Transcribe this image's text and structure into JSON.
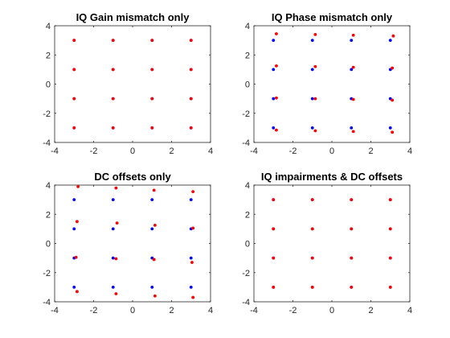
{
  "colors": {
    "ideal": "#0000ff",
    "impaired": "#ff0000",
    "axes": "#262626",
    "background": "#ffffff"
  },
  "chart_data": [
    {
      "type": "scatter",
      "title": "IQ Gain mismatch only",
      "xlim": [
        -4,
        4
      ],
      "ylim": [
        -4,
        4
      ],
      "xticks": [
        -4,
        -2,
        0,
        2,
        4
      ],
      "yticks": [
        -4,
        -2,
        0,
        2,
        4
      ],
      "xtick_labels": [
        "-4",
        "-2",
        "0",
        "2",
        "4"
      ],
      "ytick_labels": [
        "-4",
        "-2",
        "0",
        "2",
        "4"
      ],
      "grid": false,
      "series": [
        {
          "color": "#0000ff",
          "points": [
            [
              -3,
              3
            ],
            [
              -1,
              3
            ],
            [
              1,
              3
            ],
            [
              3,
              3
            ],
            [
              -3,
              1
            ],
            [
              -1,
              1
            ],
            [
              1,
              1
            ],
            [
              3,
              1
            ],
            [
              -3,
              -1
            ],
            [
              -1,
              -1
            ],
            [
              1,
              -1
            ],
            [
              3,
              -1
            ],
            [
              -3,
              -3
            ],
            [
              -1,
              -3
            ],
            [
              1,
              -3
            ],
            [
              3,
              -3
            ]
          ]
        },
        {
          "color": "#ff0000",
          "points": [
            [
              -3,
              3
            ],
            [
              -1,
              3
            ],
            [
              1,
              3
            ],
            [
              3,
              3
            ],
            [
              -3,
              1
            ],
            [
              -1,
              1
            ],
            [
              1,
              1
            ],
            [
              3,
              1
            ],
            [
              -3,
              -1
            ],
            [
              -1,
              -1
            ],
            [
              1,
              -1
            ],
            [
              3,
              -1
            ],
            [
              -3,
              -3
            ],
            [
              -1,
              -3
            ],
            [
              1,
              -3
            ],
            [
              3,
              -3
            ]
          ]
        }
      ]
    },
    {
      "type": "scatter",
      "title": "IQ Phase mismatch only",
      "xlim": [
        -4,
        4
      ],
      "ylim": [
        -4,
        4
      ],
      "xticks": [
        -4,
        -2,
        0,
        2,
        4
      ],
      "yticks": [
        -4,
        -2,
        0,
        2,
        4
      ],
      "xtick_labels": [
        "-4",
        "-2",
        "0",
        "2",
        "4"
      ],
      "ytick_labels": [
        "-4",
        "-2",
        "0",
        "2",
        "4"
      ],
      "grid": false,
      "series": [
        {
          "color": "#0000ff",
          "points": [
            [
              -3,
              3
            ],
            [
              -1,
              3
            ],
            [
              1,
              3
            ],
            [
              3,
              3
            ],
            [
              -3,
              1
            ],
            [
              -1,
              1
            ],
            [
              1,
              1
            ],
            [
              3,
              1
            ],
            [
              -3,
              -1
            ],
            [
              -1,
              -1
            ],
            [
              1,
              -1
            ],
            [
              3,
              -1
            ],
            [
              -3,
              -3
            ],
            [
              -1,
              -3
            ],
            [
              1,
              -3
            ],
            [
              3,
              -3
            ]
          ]
        },
        {
          "color": "#ff0000",
          "points": [
            [
              -2.85,
              3.45
            ],
            [
              -0.85,
              3.4
            ],
            [
              1.1,
              3.35
            ],
            [
              3.15,
              3.3
            ],
            [
              -2.85,
              1.25
            ],
            [
              -0.85,
              1.2
            ],
            [
              1.1,
              1.15
            ],
            [
              3.1,
              1.1
            ],
            [
              -2.85,
              -0.95
            ],
            [
              -0.85,
              -1.0
            ],
            [
              1.1,
              -1.05
            ],
            [
              3.1,
              -1.1
            ],
            [
              -2.85,
              -3.15
            ],
            [
              -0.85,
              -3.2
            ],
            [
              1.1,
              -3.25
            ],
            [
              3.1,
              -3.3
            ]
          ]
        }
      ]
    },
    {
      "type": "scatter",
      "title": "DC offsets only",
      "xlim": [
        -4,
        4
      ],
      "ylim": [
        -4,
        4
      ],
      "xticks": [
        -4,
        -2,
        0,
        2,
        4
      ],
      "yticks": [
        -4,
        -2,
        0,
        2,
        4
      ],
      "xtick_labels": [
        "-4",
        "-2",
        "0",
        "2",
        "4"
      ],
      "ytick_labels": [
        "-4",
        "-2",
        "0",
        "2",
        "4"
      ],
      "grid": false,
      "series": [
        {
          "color": "#0000ff",
          "points": [
            [
              -3,
              3
            ],
            [
              -1,
              3
            ],
            [
              1,
              3
            ],
            [
              3,
              3
            ],
            [
              -3,
              1
            ],
            [
              -1,
              1
            ],
            [
              1,
              1
            ],
            [
              3,
              1
            ],
            [
              -3,
              -1
            ],
            [
              -1,
              -1
            ],
            [
              1,
              -1
            ],
            [
              3,
              -1
            ],
            [
              -3,
              -3
            ],
            [
              -1,
              -3
            ],
            [
              1,
              -3
            ],
            [
              3,
              -3
            ]
          ]
        },
        {
          "color": "#ff0000",
          "points": [
            [
              -2.8,
              3.9
            ],
            [
              -0.85,
              3.8
            ],
            [
              1.1,
              3.65
            ],
            [
              3.1,
              3.55
            ],
            [
              -2.85,
              1.5
            ],
            [
              -0.8,
              1.4
            ],
            [
              1.15,
              1.25
            ],
            [
              3.1,
              1.05
            ],
            [
              -2.9,
              -0.95
            ],
            [
              -0.85,
              -1.05
            ],
            [
              1.1,
              -1.1
            ],
            [
              3.05,
              -1.3
            ],
            [
              -2.85,
              -3.3
            ],
            [
              -0.85,
              -3.45
            ],
            [
              1.15,
              -3.6
            ],
            [
              3.1,
              -3.7
            ]
          ]
        }
      ]
    },
    {
      "type": "scatter",
      "title": "IQ impairments & DC offsets",
      "xlim": [
        -4,
        4
      ],
      "ylim": [
        -4,
        4
      ],
      "xticks": [
        -4,
        -2,
        0,
        2,
        4
      ],
      "yticks": [
        -4,
        -2,
        0,
        2,
        4
      ],
      "xtick_labels": [
        "-4",
        "-2",
        "0",
        "2",
        "4"
      ],
      "ytick_labels": [
        "-4",
        "-2",
        "0",
        "2",
        "4"
      ],
      "grid": false,
      "series": [
        {
          "color": "#0000ff",
          "points": [
            [
              -3,
              3
            ],
            [
              -1,
              3
            ],
            [
              1,
              3
            ],
            [
              3,
              3
            ],
            [
              -3,
              1
            ],
            [
              -1,
              1
            ],
            [
              1,
              1
            ],
            [
              3,
              1
            ],
            [
              -3,
              -1
            ],
            [
              -1,
              -1
            ],
            [
              1,
              -1
            ],
            [
              3,
              -1
            ],
            [
              -3,
              -3
            ],
            [
              -1,
              -3
            ],
            [
              1,
              -3
            ],
            [
              3,
              -3
            ]
          ]
        },
        {
          "color": "#ff0000",
          "points": [
            [
              -3,
              3
            ],
            [
              -1,
              3
            ],
            [
              1,
              3
            ],
            [
              3,
              3
            ],
            [
              -3,
              1
            ],
            [
              -1,
              1
            ],
            [
              1,
              1
            ],
            [
              3,
              1
            ],
            [
              -3,
              -1
            ],
            [
              -1,
              -1
            ],
            [
              1,
              -1
            ],
            [
              3,
              -1
            ],
            [
              -3,
              -3
            ],
            [
              -1,
              -3
            ],
            [
              1,
              -3
            ],
            [
              3,
              -3
            ]
          ]
        }
      ]
    }
  ]
}
